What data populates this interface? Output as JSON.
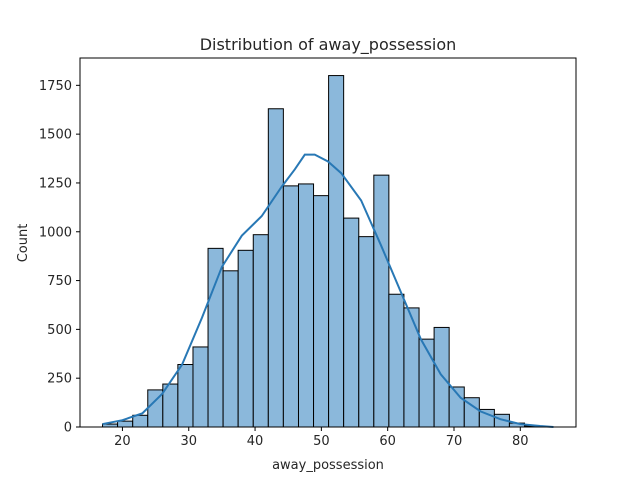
{
  "chart_data": {
    "type": "histogram",
    "title": "Distribution of away_possession",
    "xlabel": "away_possession",
    "ylabel": "Count",
    "xlim": [
      13.6,
      88.4
    ],
    "ylim": [
      0,
      1890
    ],
    "xticks": [
      20,
      30,
      40,
      50,
      60,
      70,
      80
    ],
    "yticks": [
      0,
      250,
      500,
      750,
      1000,
      1250,
      1500,
      1750
    ],
    "grid": false,
    "bar_color": "#8bb8db",
    "bar_edge_color": "#000000",
    "kde_color": "#2878b5",
    "bins": [
      {
        "x0": 17.0,
        "x1": 19.27,
        "count": 15
      },
      {
        "x0": 19.27,
        "x1": 21.55,
        "count": 30
      },
      {
        "x0": 21.55,
        "x1": 23.82,
        "count": 60
      },
      {
        "x0": 23.82,
        "x1": 26.09,
        "count": 190
      },
      {
        "x0": 26.09,
        "x1": 28.36,
        "count": 220
      },
      {
        "x0": 28.36,
        "x1": 30.64,
        "count": 320
      },
      {
        "x0": 30.64,
        "x1": 32.91,
        "count": 410
      },
      {
        "x0": 32.91,
        "x1": 35.18,
        "count": 915
      },
      {
        "x0": 35.18,
        "x1": 37.45,
        "count": 800
      },
      {
        "x0": 37.45,
        "x1": 39.73,
        "count": 905
      },
      {
        "x0": 39.73,
        "x1": 42.0,
        "count": 985
      },
      {
        "x0": 42.0,
        "x1": 44.27,
        "count": 1630
      },
      {
        "x0": 44.27,
        "x1": 46.55,
        "count": 1235
      },
      {
        "x0": 46.55,
        "x1": 48.82,
        "count": 1245
      },
      {
        "x0": 48.82,
        "x1": 51.09,
        "count": 1185
      },
      {
        "x0": 51.09,
        "x1": 53.36,
        "count": 1800
      },
      {
        "x0": 53.36,
        "x1": 55.64,
        "count": 1070
      },
      {
        "x0": 55.64,
        "x1": 57.91,
        "count": 975
      },
      {
        "x0": 57.91,
        "x1": 60.18,
        "count": 1290
      },
      {
        "x0": 60.18,
        "x1": 62.45,
        "count": 680
      },
      {
        "x0": 62.45,
        "x1": 64.73,
        "count": 610
      },
      {
        "x0": 64.73,
        "x1": 67.0,
        "count": 450
      },
      {
        "x0": 67.0,
        "x1": 69.27,
        "count": 510
      },
      {
        "x0": 69.27,
        "x1": 71.55,
        "count": 205
      },
      {
        "x0": 71.55,
        "x1": 73.82,
        "count": 150
      },
      {
        "x0": 73.82,
        "x1": 76.09,
        "count": 90
      },
      {
        "x0": 76.09,
        "x1": 78.36,
        "count": 65
      },
      {
        "x0": 78.36,
        "x1": 80.64,
        "count": 20
      },
      {
        "x0": 80.64,
        "x1": 82.91,
        "count": 5
      },
      {
        "x0": 82.91,
        "x1": 85.0,
        "count": 0
      }
    ],
    "kde": {
      "x": [
        17,
        20,
        23,
        26,
        29,
        32,
        35,
        38,
        41,
        44,
        46,
        47.5,
        49,
        51,
        53,
        56,
        59,
        62,
        65,
        68,
        71,
        74,
        77,
        80,
        83,
        85
      ],
      "y": [
        15,
        35,
        70,
        170,
        320,
        560,
        820,
        980,
        1080,
        1230,
        1320,
        1395,
        1395,
        1360,
        1300,
        1160,
        930,
        690,
        450,
        270,
        150,
        80,
        40,
        15,
        5,
        0
      ]
    }
  }
}
